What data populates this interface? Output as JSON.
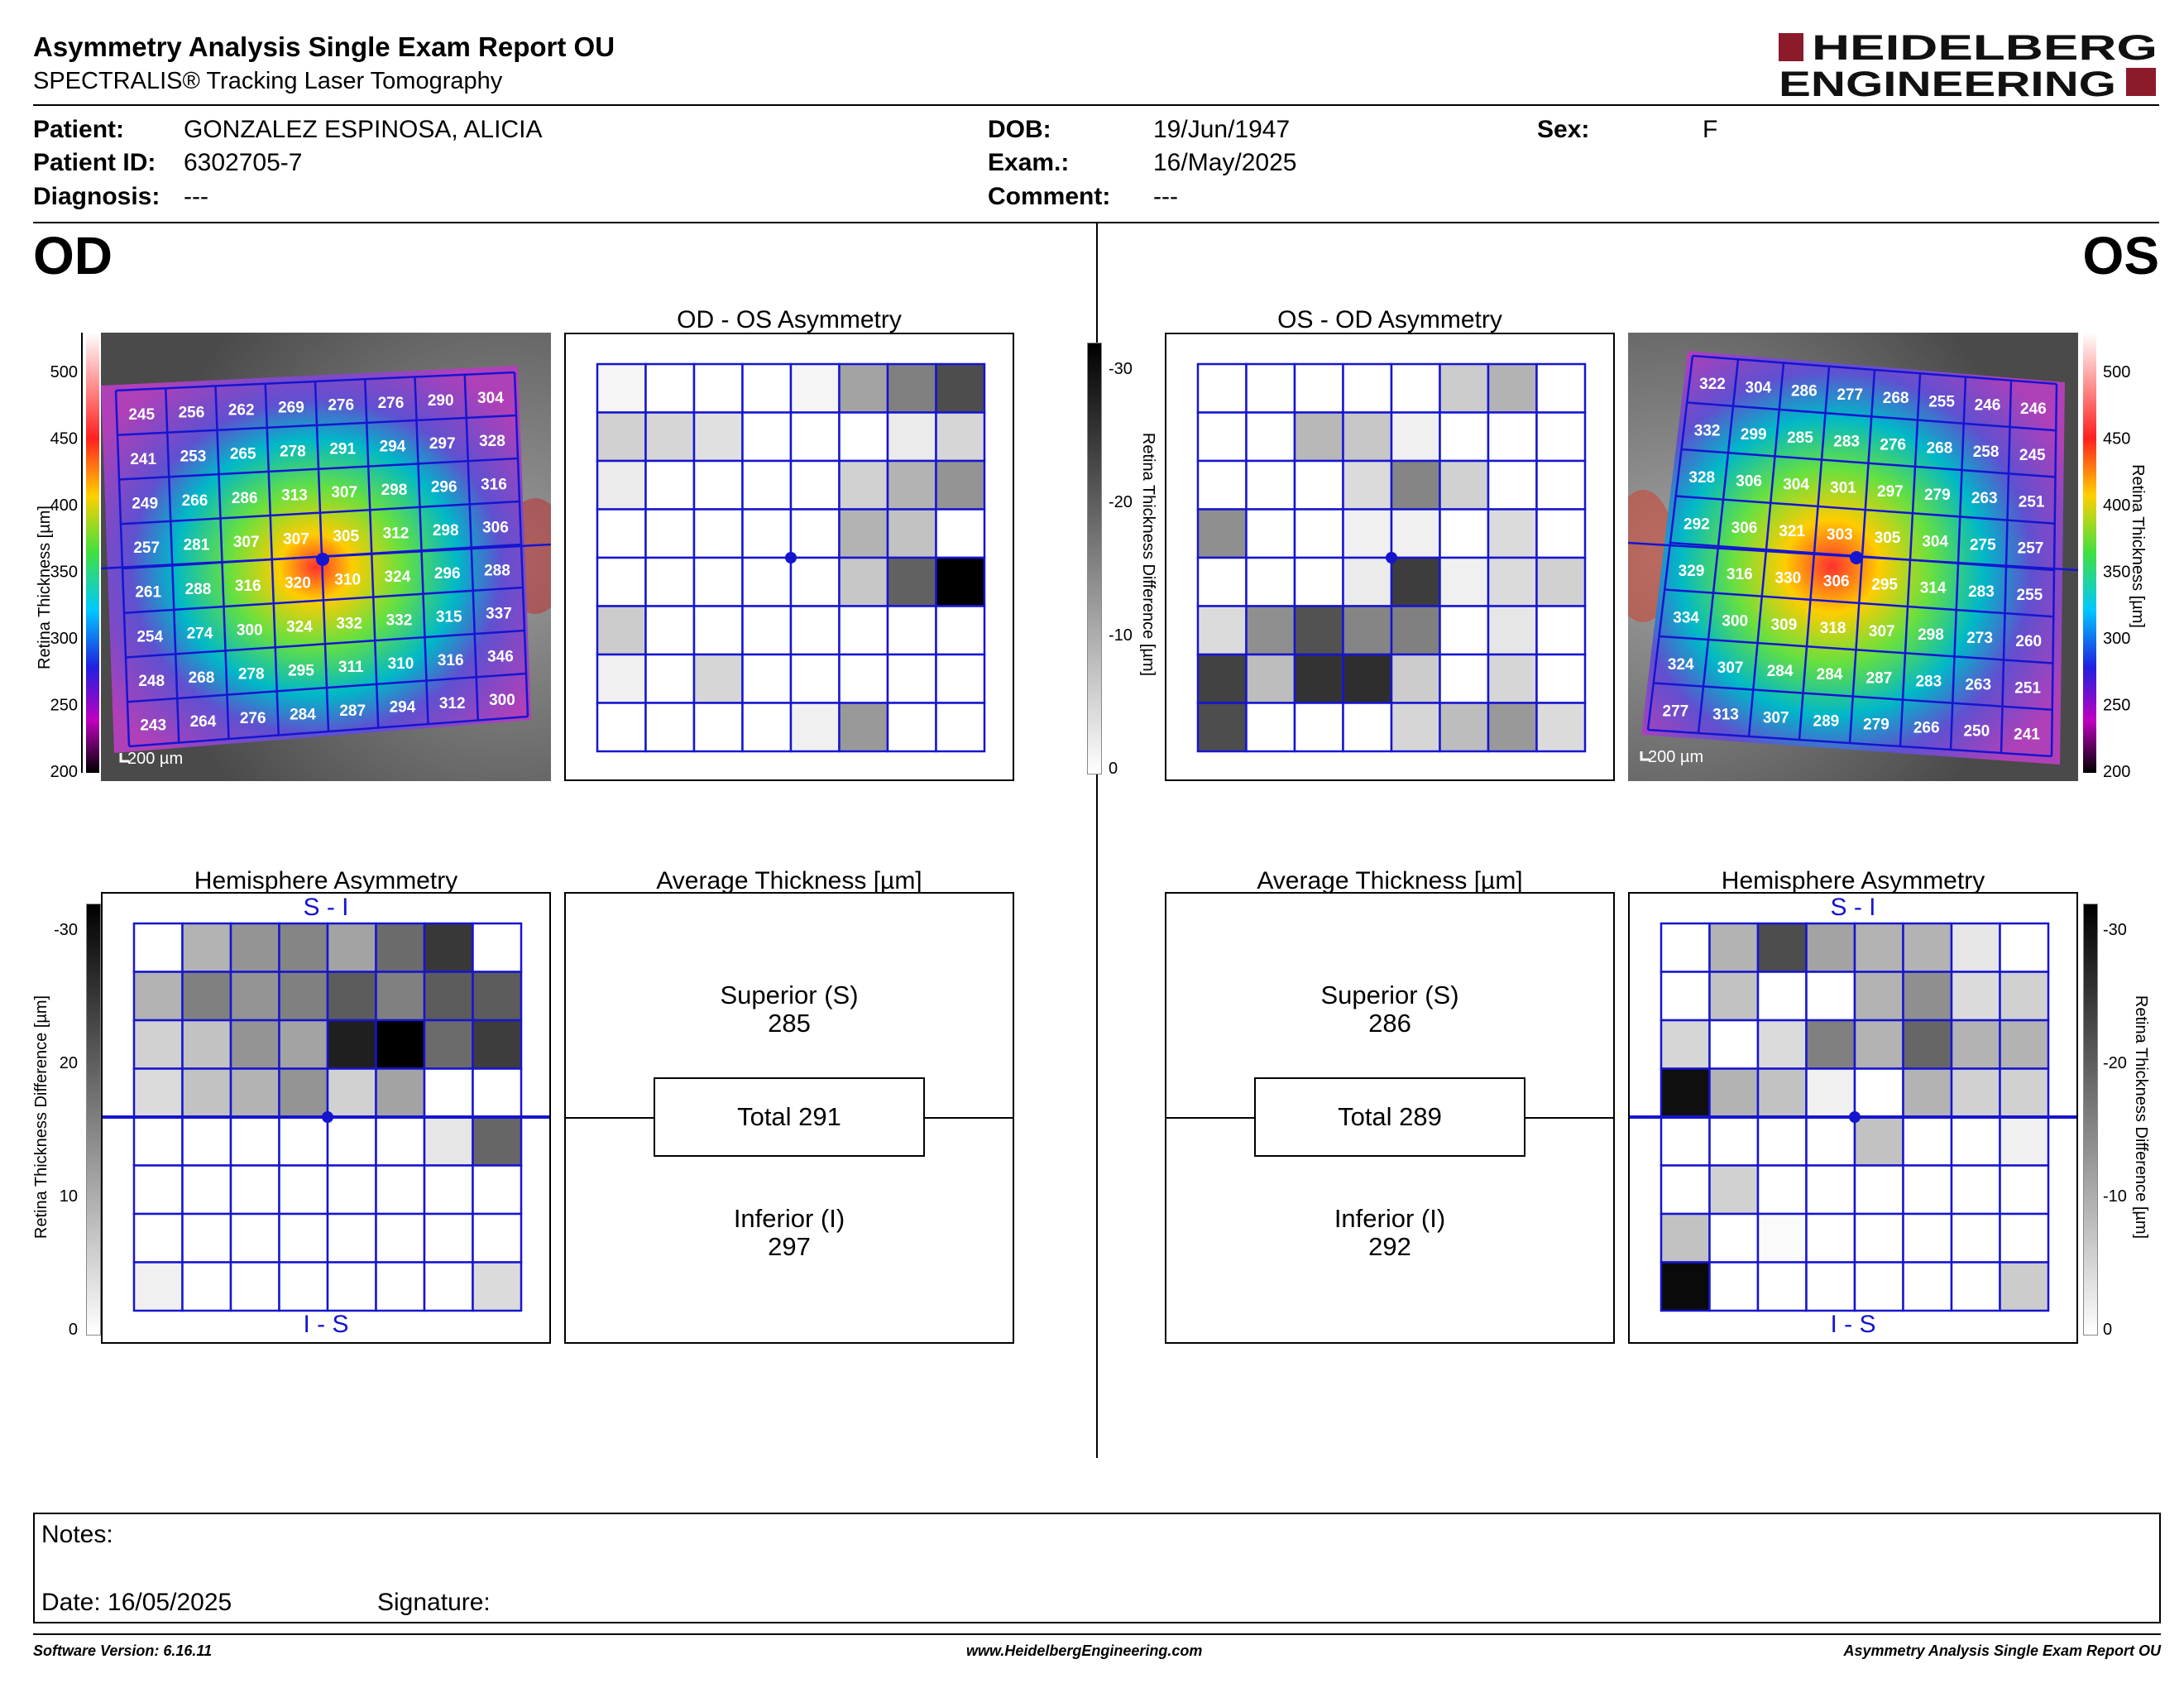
{
  "header": {
    "title": "Asymmetry Analysis Single Exam Report OU",
    "subtitle": "SPECTRALIS® Tracking Laser Tomography",
    "logo_line1": "HEIDELBERG",
    "logo_line2": "ENGINEERING",
    "brand_color": "#8b1a2b"
  },
  "patient": {
    "patient_label": "Patient:",
    "patient_value": "GONZALEZ ESPINOSA, ALICIA",
    "id_label": "Patient ID:",
    "id_value": "6302705-7",
    "diagnosis_label": "Diagnosis:",
    "diagnosis_value": "---",
    "dob_label": "DOB:",
    "dob_value": "19/Jun/1947",
    "exam_label": "Exam.:",
    "exam_value": "16/May/2025",
    "comment_label": "Comment:",
    "comment_value": "---",
    "sex_label": "Sex:",
    "sex_value": "F"
  },
  "od": {
    "eye_label": "OD",
    "asym_title": "OD - OS Asymmetry",
    "hemi_title": "Hemisphere Asymmetry",
    "avg_title": "Average Thickness [µm]",
    "hemi_top": "S - I",
    "hemi_bottom": "I - S",
    "scale_bar": "200 µm",
    "superior_label": "Superior (S)",
    "superior_value": "285",
    "total_label": "Total 291",
    "inferior_label": "Inferior (I)",
    "inferior_value": "297",
    "thickness": [
      [
        245,
        256,
        262,
        269,
        276,
        276,
        290,
        304
      ],
      [
        241,
        253,
        265,
        278,
        291,
        294,
        297,
        328
      ],
      [
        249,
        266,
        286,
        313,
        307,
        298,
        296,
        316
      ],
      [
        257,
        281,
        307,
        307,
        305,
        312,
        298,
        306
      ],
      [
        261,
        288,
        316,
        320,
        310,
        324,
        296,
        288
      ],
      [
        254,
        274,
        300,
        324,
        332,
        332,
        315,
        337
      ],
      [
        248,
        268,
        278,
        295,
        311,
        310,
        316,
        346
      ],
      [
        243,
        264,
        276,
        284,
        287,
        294,
        312,
        300
      ]
    ],
    "asym_gray": [
      [
        0.04,
        0,
        0,
        0,
        0.04,
        0.36,
        0.5,
        0.7
      ],
      [
        0.18,
        0.16,
        0.12,
        0,
        0,
        0,
        0.08,
        0.16
      ],
      [
        0.08,
        0,
        0,
        0,
        0,
        0.18,
        0.3,
        0.42
      ],
      [
        0,
        0,
        0,
        0,
        0,
        0.3,
        0.24,
        0
      ],
      [
        0,
        0,
        0,
        0,
        0,
        0.22,
        0.62,
        1.0
      ],
      [
        0.2,
        0,
        0,
        0,
        0,
        0,
        0,
        0
      ],
      [
        0.06,
        0,
        0.16,
        0,
        0,
        0,
        0,
        0
      ],
      [
        0,
        0,
        0,
        0,
        0.06,
        0.4,
        0,
        0
      ]
    ],
    "hemi_gray": [
      [
        0,
        0.3,
        0.42,
        0.48,
        0.36,
        0.58,
        0.78,
        0
      ],
      [
        0.3,
        0.5,
        0.42,
        0.5,
        0.64,
        0.5,
        0.64,
        0.64
      ],
      [
        0.18,
        0.24,
        0.42,
        0.36,
        0.88,
        1.0,
        0.58,
        0.76
      ],
      [
        0.14,
        0.24,
        0.3,
        0.42,
        0.18,
        0.36,
        0,
        0
      ],
      [
        0,
        0,
        0,
        0,
        0,
        0,
        0.1,
        0.6
      ],
      [
        0,
        0,
        0,
        0,
        0,
        0,
        0,
        0
      ],
      [
        0,
        0,
        0,
        0,
        0,
        0,
        0,
        0
      ],
      [
        0.06,
        0,
        0,
        0,
        0,
        0,
        0,
        0.14
      ]
    ]
  },
  "os": {
    "eye_label": "OS",
    "asym_title": "OS - OD Asymmetry",
    "hemi_title": "Hemisphere Asymmetry",
    "avg_title": "Average Thickness [µm]",
    "hemi_top": "S - I",
    "hemi_bottom": "I - S",
    "scale_bar": "200 µm",
    "superior_label": "Superior (S)",
    "superior_value": "286",
    "total_label": "Total 289",
    "inferior_label": "Inferior (I)",
    "inferior_value": "292",
    "thickness": [
      [
        322,
        304,
        286,
        277,
        268,
        255,
        246,
        246
      ],
      [
        332,
        299,
        285,
        283,
        276,
        268,
        258,
        245
      ],
      [
        328,
        306,
        304,
        301,
        297,
        279,
        263,
        251
      ],
      [
        292,
        306,
        321,
        303,
        305,
        304,
        275,
        257
      ],
      [
        329,
        316,
        330,
        306,
        295,
        314,
        283,
        255
      ],
      [
        334,
        300,
        309,
        318,
        307,
        298,
        273,
        260
      ],
      [
        324,
        307,
        284,
        284,
        287,
        283,
        263,
        251
      ],
      [
        277,
        313,
        307,
        289,
        279,
        266,
        250,
        241
      ]
    ],
    "asym_gray": [
      [
        0,
        0,
        0,
        0,
        0,
        0.2,
        0.3,
        0
      ],
      [
        0,
        0,
        0.28,
        0.22,
        0.06,
        0,
        0,
        0
      ],
      [
        0,
        0,
        0,
        0.14,
        0.48,
        0.18,
        0,
        0
      ],
      [
        0.44,
        0,
        0,
        0.06,
        0.06,
        0,
        0.14,
        0
      ],
      [
        0,
        0,
        0,
        0.08,
        0.76,
        0.06,
        0.14,
        0.18
      ],
      [
        0.14,
        0.44,
        0.68,
        0.48,
        0.5,
        0,
        0.1,
        0
      ],
      [
        0.74,
        0.26,
        0.8,
        0.82,
        0.2,
        0,
        0.16,
        0
      ],
      [
        0.7,
        0,
        0,
        0,
        0.16,
        0.26,
        0.4,
        0.14
      ]
    ],
    "hemi_gray": [
      [
        0,
        0.3,
        0.7,
        0.36,
        0.3,
        0.3,
        0.1,
        0
      ],
      [
        0,
        0.24,
        0,
        0,
        0.3,
        0.44,
        0.14,
        0.18
      ],
      [
        0.16,
        0,
        0.14,
        0.5,
        0.3,
        0.6,
        0.3,
        0.3
      ],
      [
        0.94,
        0.3,
        0.24,
        0.06,
        0,
        0.3,
        0.18,
        0.18
      ],
      [
        0,
        0,
        0,
        0,
        0.24,
        0,
        0,
        0.06
      ],
      [
        0,
        0.18,
        0,
        0,
        0,
        0,
        0,
        0
      ],
      [
        0.24,
        0,
        0.02,
        0,
        0,
        0,
        0,
        0
      ],
      [
        0.96,
        0,
        0,
        0,
        0,
        0,
        0,
        0.2
      ]
    ]
  },
  "thickness_scale": {
    "axis_label": "Retina  Thickness [µm]",
    "ticks": [
      "500",
      "450",
      "400",
      "350",
      "300",
      "250",
      "200"
    ]
  },
  "diff_scale": {
    "axis_label": "Retina Thickness Difference [µm]",
    "ticks": [
      "-30",
      "-20",
      "-10",
      "0"
    ],
    "ticks_left": [
      "-30",
      "20",
      "10",
      "0"
    ]
  },
  "notes": {
    "notes_label": "Notes:",
    "date_label": "Date: 16/05/2025",
    "signature_label": "Signature:"
  },
  "footer": {
    "software": "Software Version: 6.16.11",
    "website": "www.HeidelbergEngineering.com",
    "report": "Asymmetry Analysis Single Exam Report OU"
  }
}
